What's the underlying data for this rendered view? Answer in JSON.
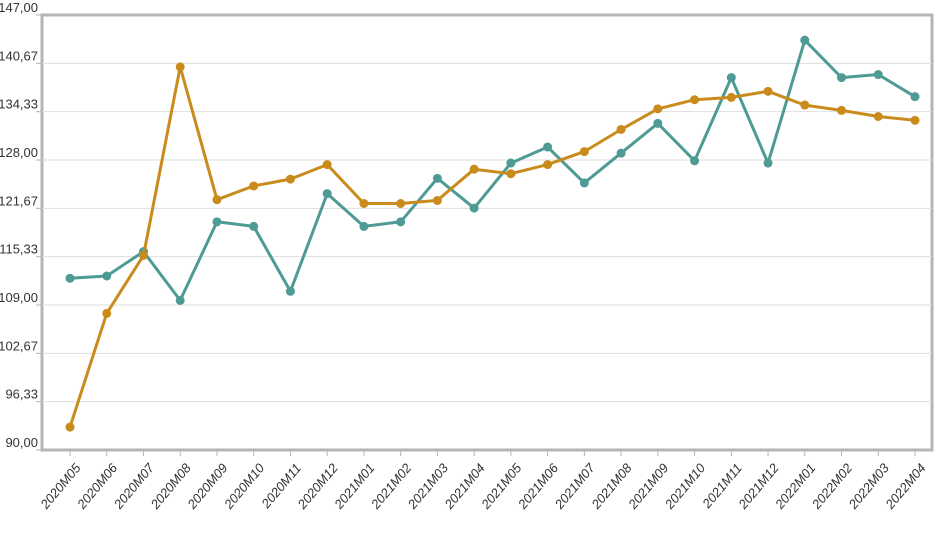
{
  "chart_data": {
    "type": "line",
    "categories": [
      "2020M05",
      "2020M06",
      "2020M07",
      "2020M08",
      "2020M09",
      "2020M10",
      "2020M11",
      "2020M12",
      "2021M01",
      "2021M02",
      "2021M03",
      "2021M04",
      "2021M05",
      "2021M06",
      "2021M07",
      "2021M08",
      "2021M09",
      "2021M10",
      "2021M11",
      "2021M12",
      "2022M01",
      "2022M02",
      "2022M03",
      "2022M04"
    ],
    "y_ticks": [
      "90,00",
      "96,33",
      "102,67",
      "109,00",
      "115,33",
      "121,67",
      "128,00",
      "134,33",
      "140,67",
      "147,00"
    ],
    "ylim": [
      90,
      147
    ],
    "grid": true,
    "legend": "none",
    "series": [
      {
        "color": "#4e9a94",
        "values": [
          112.5,
          112.8,
          116.0,
          109.6,
          119.9,
          119.3,
          110.8,
          123.6,
          119.3,
          119.9,
          125.6,
          121.7,
          127.6,
          129.7,
          125.0,
          128.9,
          132.8,
          127.9,
          138.8,
          127.6,
          143.7,
          138.8,
          139.2,
          136.3
        ]
      },
      {
        "color": "#c98b1c",
        "values": [
          93.0,
          107.9,
          115.5,
          140.2,
          122.8,
          124.6,
          125.5,
          127.4,
          122.3,
          122.3,
          122.7,
          126.8,
          126.2,
          127.4,
          129.1,
          132.0,
          134.7,
          135.9,
          136.2,
          137.0,
          135.2,
          134.5,
          133.7,
          133.2
        ]
      }
    ]
  }
}
